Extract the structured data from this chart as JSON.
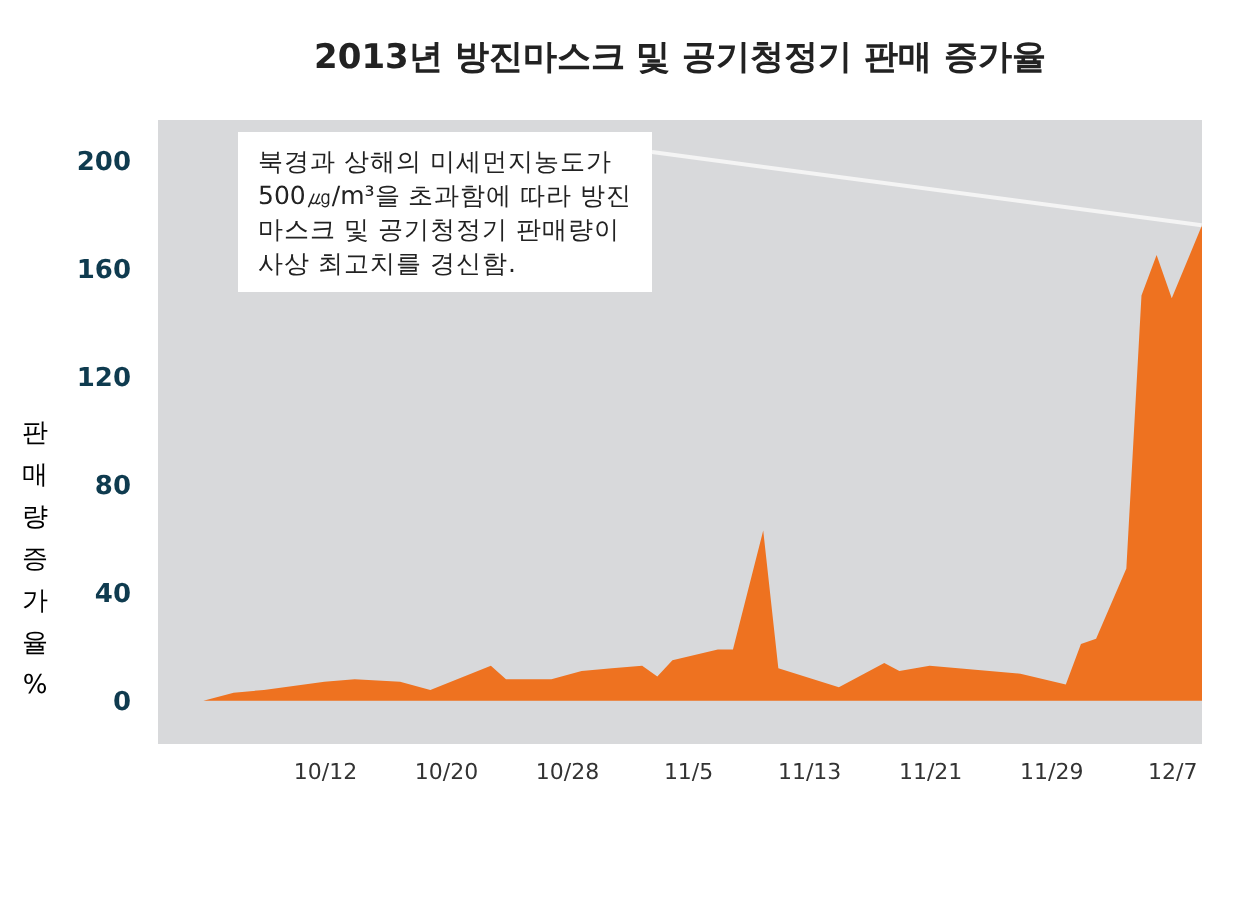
{
  "chart_data": {
    "type": "area",
    "title": "2013년 방진마스크 및 공기청정기 판매 증가율",
    "ylabel": "판매량증가율%",
    "x": [
      "--10-01",
      "--10-04",
      "--10-06",
      "--10-08",
      "--10-12",
      "--10-14",
      "--10-17",
      "--10-19",
      "--10-23",
      "--10-24",
      "--10-27",
      "--10-29",
      "--10-31",
      "--11-02",
      "--11-03",
      "--11-04",
      "--11-07",
      "--11-08",
      "--11-10",
      "--11-11",
      "--11-15",
      "--11-18",
      "--11-19",
      "--11-21",
      "--11-27",
      "--11-30",
      "--12-01",
      "--12-02",
      "--12-04",
      "--12-05",
      "--12-06",
      "--12-07",
      "--12-09"
    ],
    "series": [
      {
        "color": "#ee7220",
        "values": [
          0,
          0,
          3,
          4,
          7,
          8,
          7,
          4,
          13,
          8,
          8,
          11,
          12,
          13,
          9,
          15,
          19,
          19,
          63,
          12,
          5,
          14,
          11,
          13,
          10,
          6,
          21,
          23,
          49,
          150,
          165,
          149,
          176
        ]
      }
    ],
    "xlim": [
      "--10-01",
      "--12-09"
    ],
    "xticks": [
      {
        "value": "--10-12",
        "label": "10/12"
      },
      {
        "value": "--10-20",
        "label": "10/20"
      },
      {
        "value": "--10-28",
        "label": "10/28"
      },
      {
        "value": "--11-05",
        "label": "11/5"
      },
      {
        "value": "--11-13",
        "label": "11/13"
      },
      {
        "value": "--11-21",
        "label": "11/21"
      },
      {
        "value": "--11-29",
        "label": "11/29"
      },
      {
        "value": "--12-07",
        "label": "12/7"
      }
    ],
    "ylim": [
      -16,
      215
    ],
    "yticks": [
      0,
      40,
      80,
      120,
      160,
      200
    ],
    "annotations": [
      {
        "text": "북경과 상해의 미세먼지농도가\n500㎍/m³을 초과함에 따라 방진\n마스크 및 공기청정기 판매량이\n사상 최고치를 경신함.",
        "x": "--12-09",
        "y": 176
      }
    ]
  }
}
